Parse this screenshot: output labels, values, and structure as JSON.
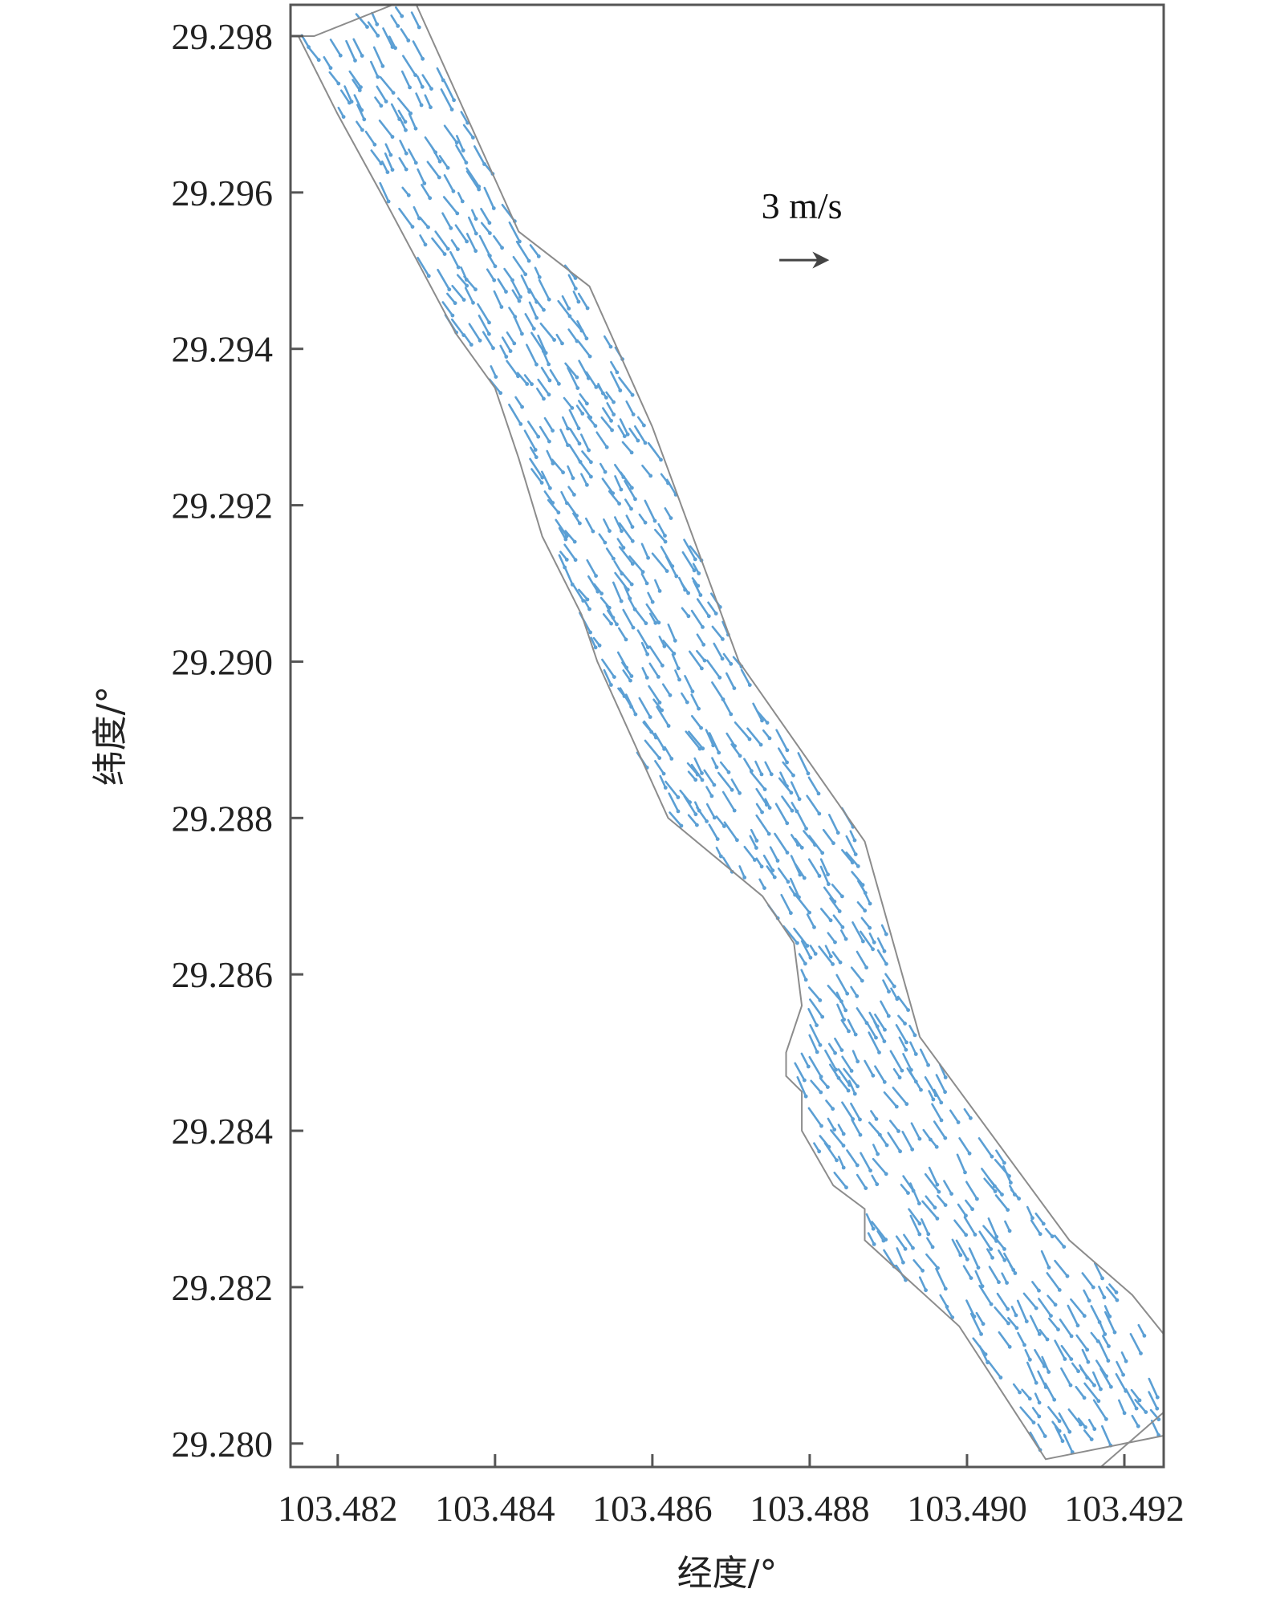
{
  "chart_data": {
    "type": "vector-field",
    "title": "",
    "xlabel": "经度/°",
    "ylabel": "纬度/°",
    "xlim": [
      103.4814,
      103.4925
    ],
    "ylim": [
      29.2797,
      29.2984
    ],
    "xticks": [
      103.482,
      103.484,
      103.486,
      103.488,
      103.49,
      103.492
    ],
    "xtick_labels": [
      "103.482",
      "103.484",
      "103.486",
      "103.488",
      "103.490",
      "103.492"
    ],
    "yticks": [
      29.28,
      29.282,
      29.284,
      29.286,
      29.288,
      29.29,
      29.292,
      29.294,
      29.296,
      29.298
    ],
    "ytick_labels": [
      "29.280",
      "29.282",
      "29.284",
      "29.286",
      "29.288",
      "29.290",
      "29.292",
      "29.294",
      "29.296",
      "29.298"
    ],
    "grid": false,
    "reference_vector": {
      "label": "3 m/s",
      "speed": 3,
      "lon": 103.4879,
      "lat": 29.2957
    },
    "channel_boundary": [
      [
        103.4815,
        29.298
      ],
      [
        103.4817,
        29.298
      ],
      [
        103.4827,
        29.2984
      ],
      [
        103.483,
        29.2984
      ],
      [
        103.4843,
        29.2955
      ],
      [
        103.4852,
        29.2948
      ],
      [
        103.486,
        29.293
      ],
      [
        103.4871,
        29.29
      ],
      [
        103.4887,
        29.2877
      ],
      [
        103.4894,
        29.2852
      ],
      [
        103.4913,
        29.2826
      ],
      [
        103.4921,
        29.2819
      ],
      [
        103.4925,
        29.2814
      ],
      [
        103.4925,
        29.2801
      ],
      [
        103.491,
        29.2798
      ],
      [
        103.4899,
        29.2815
      ],
      [
        103.4887,
        29.2826
      ],
      [
        103.4887,
        29.283
      ],
      [
        103.4883,
        29.2833
      ],
      [
        103.4879,
        29.284
      ],
      [
        103.4879,
        29.2845
      ],
      [
        103.4877,
        29.2847
      ],
      [
        103.4877,
        29.285
      ],
      [
        103.4879,
        29.2856
      ],
      [
        103.4878,
        29.2864
      ],
      [
        103.4874,
        29.287
      ],
      [
        103.4862,
        29.288
      ],
      [
        103.4853,
        29.29
      ],
      [
        103.4851,
        29.2906
      ],
      [
        103.4846,
        29.2916
      ],
      [
        103.4843,
        29.2926
      ],
      [
        103.484,
        29.2935
      ],
      [
        103.4835,
        29.2942
      ],
      [
        103.4826,
        29.2959
      ],
      [
        103.482,
        29.297
      ],
      [
        103.4815,
        29.298
      ]
    ],
    "corner_box": [
      [
        103.4917,
        29.2797
      ],
      [
        103.4925,
        29.2804
      ],
      [
        103.4925,
        29.2797
      ]
    ],
    "vector_style": {
      "color": "#5b9fd4",
      "direction": "downstream (toward south-east)",
      "flow_speed_range_m_s": [
        0.8,
        3.2
      ],
      "grid_step_deg": 0.00018
    },
    "colors": {
      "frame": "#555555",
      "boundary": "#8c8c8c",
      "reference_arrow": "#444444",
      "text": "#222222"
    }
  }
}
